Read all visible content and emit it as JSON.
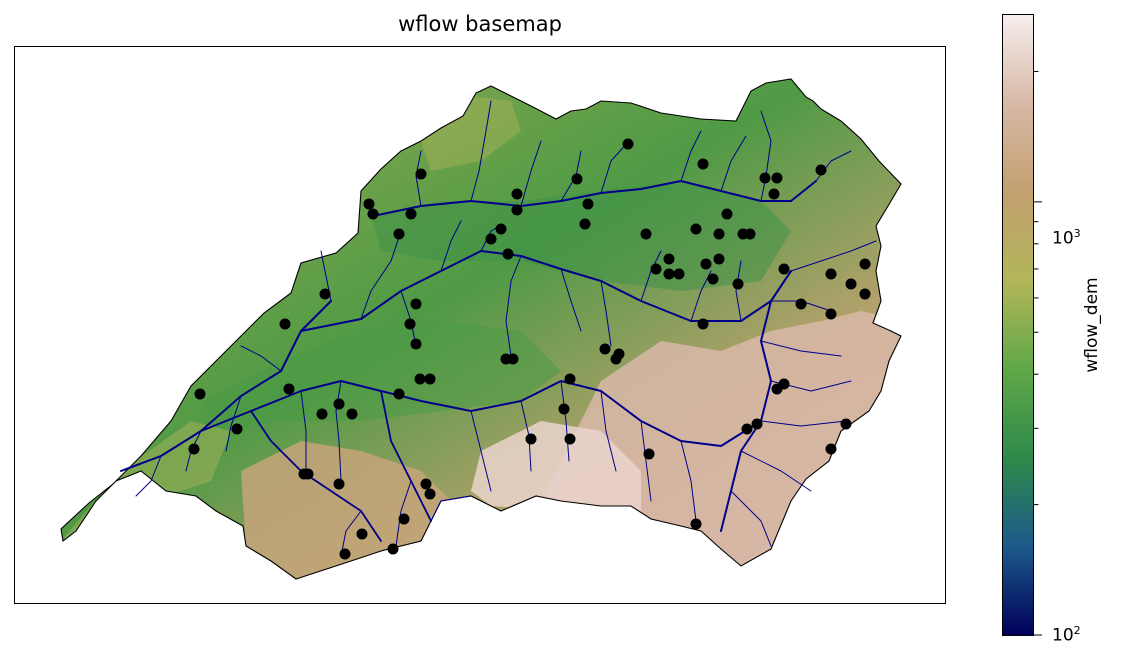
{
  "title": "wflow basemap",
  "colorbar": {
    "label": "wflow_dem",
    "scale": "log",
    "range": [
      100,
      2700
    ],
    "ticks": [
      {
        "base": "10",
        "exp": "3",
        "value": 1000
      },
      {
        "base": "10",
        "exp": "2",
        "value": 100
      }
    ],
    "colormap": [
      "#00005a",
      "#1d5a8a",
      "#2e8a4a",
      "#60a848",
      "#b2b65a",
      "#c3a070",
      "#d8b8a6",
      "#f6eeee"
    ]
  },
  "map": {
    "basin_outline_color": "#000000",
    "river_color": "#00008b",
    "gauge_color": "#000000",
    "gauges": [
      [
        420,
        173
      ],
      [
        368,
        203
      ],
      [
        372,
        213
      ],
      [
        410,
        213
      ],
      [
        516,
        193
      ],
      [
        516,
        209
      ],
      [
        576,
        178
      ],
      [
        587,
        203
      ],
      [
        627,
        143
      ],
      [
        702,
        163
      ],
      [
        764,
        177
      ],
      [
        776,
        177
      ],
      [
        820,
        169
      ],
      [
        773,
        193
      ],
      [
        726,
        213
      ],
      [
        398,
        233
      ],
      [
        490,
        238
      ],
      [
        500,
        228
      ],
      [
        507,
        253
      ],
      [
        584,
        223
      ],
      [
        645,
        233
      ],
      [
        695,
        228
      ],
      [
        718,
        233
      ],
      [
        742,
        233
      ],
      [
        749,
        233
      ],
      [
        655,
        268
      ],
      [
        668,
        258
      ],
      [
        668,
        273
      ],
      [
        678,
        273
      ],
      [
        705,
        263
      ],
      [
        712,
        278
      ],
      [
        718,
        258
      ],
      [
        737,
        283
      ],
      [
        783,
        268
      ],
      [
        830,
        273
      ],
      [
        850,
        283
      ],
      [
        864,
        263
      ],
      [
        864,
        293
      ],
      [
        800,
        303
      ],
      [
        830,
        313
      ],
      [
        324,
        293
      ],
      [
        284,
        323
      ],
      [
        415,
        303
      ],
      [
        409,
        323
      ],
      [
        415,
        343
      ],
      [
        505,
        358
      ],
      [
        512,
        358
      ],
      [
        604,
        348
      ],
      [
        615,
        358
      ],
      [
        618,
        353
      ],
      [
        702,
        323
      ],
      [
        199,
        393
      ],
      [
        288,
        388
      ],
      [
        398,
        393
      ],
      [
        419,
        378
      ],
      [
        429,
        378
      ],
      [
        569,
        378
      ],
      [
        563,
        408
      ],
      [
        338,
        403
      ],
      [
        351,
        413
      ],
      [
        321,
        413
      ],
      [
        236,
        428
      ],
      [
        193,
        448
      ],
      [
        530,
        438
      ],
      [
        569,
        438
      ],
      [
        648,
        453
      ],
      [
        746,
        428
      ],
      [
        756,
        423
      ],
      [
        776,
        388
      ],
      [
        783,
        383
      ],
      [
        845,
        423
      ],
      [
        830,
        448
      ],
      [
        303,
        473
      ],
      [
        307,
        473
      ],
      [
        338,
        483
      ],
      [
        425,
        483
      ],
      [
        429,
        493
      ],
      [
        403,
        518
      ],
      [
        361,
        533
      ],
      [
        344,
        553
      ],
      [
        392,
        548
      ],
      [
        695,
        523
      ]
    ]
  }
}
